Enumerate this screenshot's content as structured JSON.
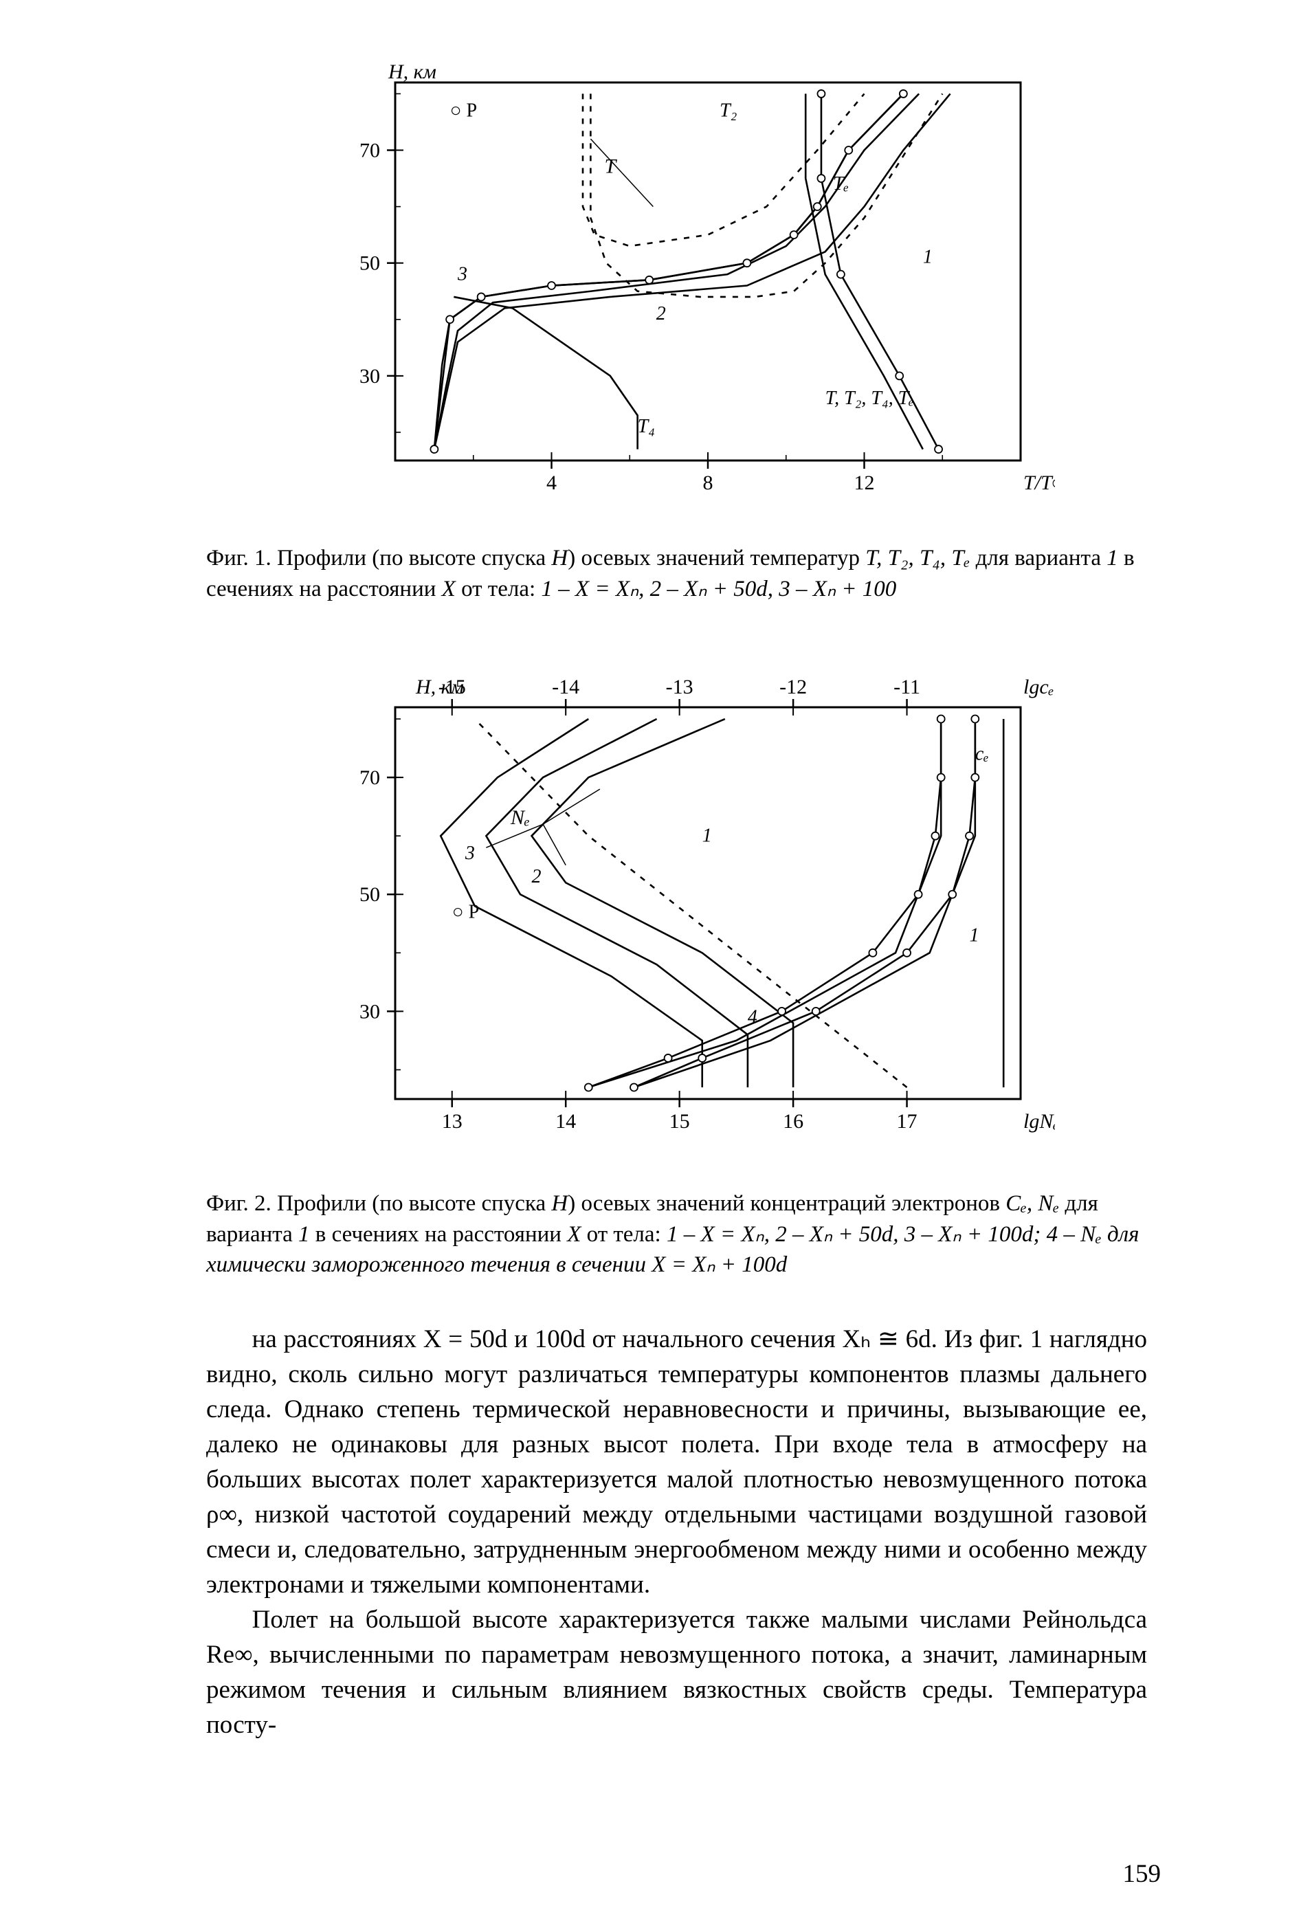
{
  "figure1": {
    "type": "line",
    "axes": {
      "y_label": "H, км",
      "y_ticks": [
        30,
        50,
        70
      ],
      "x_ticks": [
        4,
        8,
        12
      ],
      "x_right_label": "T/T∞",
      "frame_color": "#000000",
      "frame_width": 3,
      "inner_labels": [
        "○ P",
        "T",
        "T₂",
        "Tₑ",
        "1",
        "2",
        "3",
        "T₄",
        "T, T₂, T₄, Tₑ"
      ]
    },
    "curves": {
      "c1_solid": [
        [
          1.0,
          17
        ],
        [
          1.2,
          32
        ],
        [
          1.4,
          40
        ],
        [
          2.2,
          44
        ],
        [
          4.0,
          46
        ],
        [
          6.5,
          47
        ],
        [
          9.0,
          50
        ],
        [
          10.2,
          55
        ],
        [
          10.8,
          60
        ],
        [
          11.6,
          70
        ],
        [
          13.0,
          80
        ]
      ],
      "c1_marker": [
        [
          1.0,
          17
        ],
        [
          1.4,
          40
        ],
        [
          2.2,
          44
        ],
        [
          4.0,
          46
        ],
        [
          6.5,
          47
        ],
        [
          9.0,
          50
        ],
        [
          10.2,
          55
        ],
        [
          10.8,
          60
        ],
        [
          11.6,
          70
        ],
        [
          13.0,
          80
        ]
      ],
      "c2_solid": [
        [
          1.0,
          17
        ],
        [
          1.3,
          28
        ],
        [
          1.6,
          38
        ],
        [
          2.5,
          43
        ],
        [
          5.0,
          45
        ],
        [
          8.5,
          48
        ],
        [
          10.0,
          53
        ],
        [
          11.0,
          60
        ],
        [
          12.0,
          70
        ],
        [
          13.4,
          80
        ]
      ],
      "c3_solid": [
        [
          1.0,
          17
        ],
        [
          1.6,
          36
        ],
        [
          2.8,
          42
        ],
        [
          5.5,
          44
        ],
        [
          9.0,
          46
        ],
        [
          11.0,
          52
        ],
        [
          12.0,
          60
        ],
        [
          13.0,
          70
        ],
        [
          14.2,
          80
        ]
      ],
      "t_dash": [
        [
          4.8,
          80
        ],
        [
          4.8,
          60
        ],
        [
          5.1,
          55
        ],
        [
          6.0,
          53
        ],
        [
          8.0,
          55
        ],
        [
          9.5,
          60
        ],
        [
          10.8,
          70
        ],
        [
          12.0,
          80
        ]
      ],
      "t2_dash": [
        [
          5.0,
          80
        ],
        [
          5.0,
          58
        ],
        [
          5.4,
          50
        ],
        [
          6.2,
          45
        ],
        [
          7.8,
          44
        ],
        [
          9.2,
          44
        ],
        [
          10.2,
          45
        ],
        [
          11.0,
          50
        ],
        [
          12.0,
          58
        ],
        [
          14.0,
          80
        ]
      ],
      "t4_solid": [
        [
          6.2,
          17
        ],
        [
          6.2,
          23
        ],
        [
          5.5,
          30
        ],
        [
          3.0,
          42
        ],
        [
          1.5,
          44
        ]
      ],
      "te_pair": [
        [
          10.5,
          80
        ],
        [
          10.5,
          65
        ],
        [
          11.0,
          48
        ],
        [
          12.5,
          30
        ],
        [
          13.5,
          17
        ]
      ]
    },
    "style": {
      "line_color": "#000000",
      "line_width": 2.6,
      "dash": "8,10",
      "marker_radius": 5.5,
      "marker_stroke": "#000000",
      "marker_fill": "#ffffff"
    }
  },
  "caption1": {
    "prefix": "Фиг. 1. Профили (по высоте спуска ",
    "h": "H",
    "mid1": ") осевых значений температур ",
    "sym": "T, T₂, T₄, Tₑ",
    "mid2": " для варианта ",
    "var": "1",
    "mid3": " в сечениях на расстоянии ",
    "xvar": "X",
    "mid4": " от тела: ",
    "items": "1 – X = Xₙ, 2 – Xₙ + 50d, 3 – Xₙ + 100"
  },
  "figure2": {
    "type": "line",
    "axes": {
      "y_label": "H, км",
      "y_ticks": [
        30,
        50,
        70
      ],
      "x_bottom_ticks": [
        13,
        14,
        15,
        16,
        17
      ],
      "x_bottom_label": "lgNₑ",
      "x_top_ticks": [
        -15,
        -14,
        -13,
        -12,
        -11
      ],
      "x_top_label": "lgcₑ",
      "frame_color": "#000000",
      "frame_width": 3,
      "inner_labels": [
        "○ P",
        "Nₑ",
        "cₑ",
        "1",
        "2",
        "3",
        "4"
      ]
    },
    "curves": {
      "n1": [
        [
          16.0,
          17
        ],
        [
          16.0,
          28
        ],
        [
          15.2,
          40
        ],
        [
          14.0,
          52
        ],
        [
          13.7,
          60
        ],
        [
          14.2,
          70
        ],
        [
          15.4,
          80
        ]
      ],
      "n2": [
        [
          15.6,
          17
        ],
        [
          15.6,
          26
        ],
        [
          14.8,
          38
        ],
        [
          13.6,
          50
        ],
        [
          13.3,
          60
        ],
        [
          13.8,
          70
        ],
        [
          14.8,
          80
        ]
      ],
      "n3": [
        [
          15.2,
          17
        ],
        [
          15.2,
          25
        ],
        [
          14.4,
          36
        ],
        [
          13.2,
          48
        ],
        [
          12.9,
          60
        ],
        [
          13.4,
          70
        ],
        [
          14.2,
          80
        ]
      ],
      "dash4": [
        [
          17.0,
          17
        ],
        [
          15.5,
          40
        ],
        [
          14.2,
          60
        ],
        [
          13.2,
          80
        ]
      ],
      "ce1": [
        [
          17.6,
          80
        ],
        [
          17.6,
          60
        ],
        [
          17.2,
          40
        ],
        [
          15.8,
          25
        ],
        [
          14.6,
          17
        ]
      ],
      "ce1m": [
        [
          17.6,
          80
        ],
        [
          17.6,
          70
        ],
        [
          17.55,
          60
        ],
        [
          17.4,
          50
        ],
        [
          17.0,
          40
        ],
        [
          16.2,
          30
        ],
        [
          15.2,
          22
        ],
        [
          14.6,
          17
        ]
      ],
      "ce2": [
        [
          17.3,
          80
        ],
        [
          17.3,
          60
        ],
        [
          16.9,
          40
        ],
        [
          15.5,
          25
        ],
        [
          14.2,
          17
        ]
      ],
      "ce2m": [
        [
          17.3,
          80
        ],
        [
          17.3,
          70
        ],
        [
          17.25,
          60
        ],
        [
          17.1,
          50
        ],
        [
          16.7,
          40
        ],
        [
          15.9,
          30
        ],
        [
          14.9,
          22
        ],
        [
          14.2,
          17
        ]
      ],
      "cevert": [
        [
          17.85,
          80
        ],
        [
          17.85,
          17
        ]
      ]
    },
    "style": {
      "line_color": "#000000",
      "line_width": 2.6,
      "dash": "8,10",
      "marker_radius": 5.5,
      "marker_stroke": "#000000",
      "marker_fill": "#ffffff"
    }
  },
  "caption2": {
    "prefix": "Фиг. 2. Профили (по высоте спуска ",
    "h": "H",
    "mid1": ") осевых значений концентраций электронов ",
    "sym": "Cₑ, Nₑ",
    "mid2": " для варианта ",
    "var": "1",
    "mid3": " в сечениях на расстоянии ",
    "xvar": "X",
    "mid4": " от тела: ",
    "items": "1 – X = Xₙ, 2 – Xₙ + 50d, 3 – Xₙ + 100d; 4 – Nₑ для химически замороженного течения в сечении X = Xₙ + 100d"
  },
  "body": {
    "p1": "на расстояниях X = 50d и 100d от начального сечения Xₕ ≅ 6d. Из фиг. 1 наглядно видно, сколь сильно могут различаться температуры компонентов плазмы дальнего следа. Однако степень термической неравновесности и причины, вызывающие ее, далеко не одинаковы для разных высот полета. При входе тела в атмосферу на больших высотах полет характеризуется малой плотностью невозмущенного потока ρ∞, низкой частотой соударений между отдельными частицами воздушной газовой смеси и, следовательно, затрудненным энергообменом между ними и особенно между электронами и тяжелыми компонентами.",
    "p2": "Полет на большой высоте характеризуется также малыми числами Рейнольдса Re∞, вычисленными по параметрам невозмущенного потока, а значит, ламинарным режимом течения и сильным влиянием вязкостных свойств среды. Температура посту-"
  },
  "pagenum": "159"
}
